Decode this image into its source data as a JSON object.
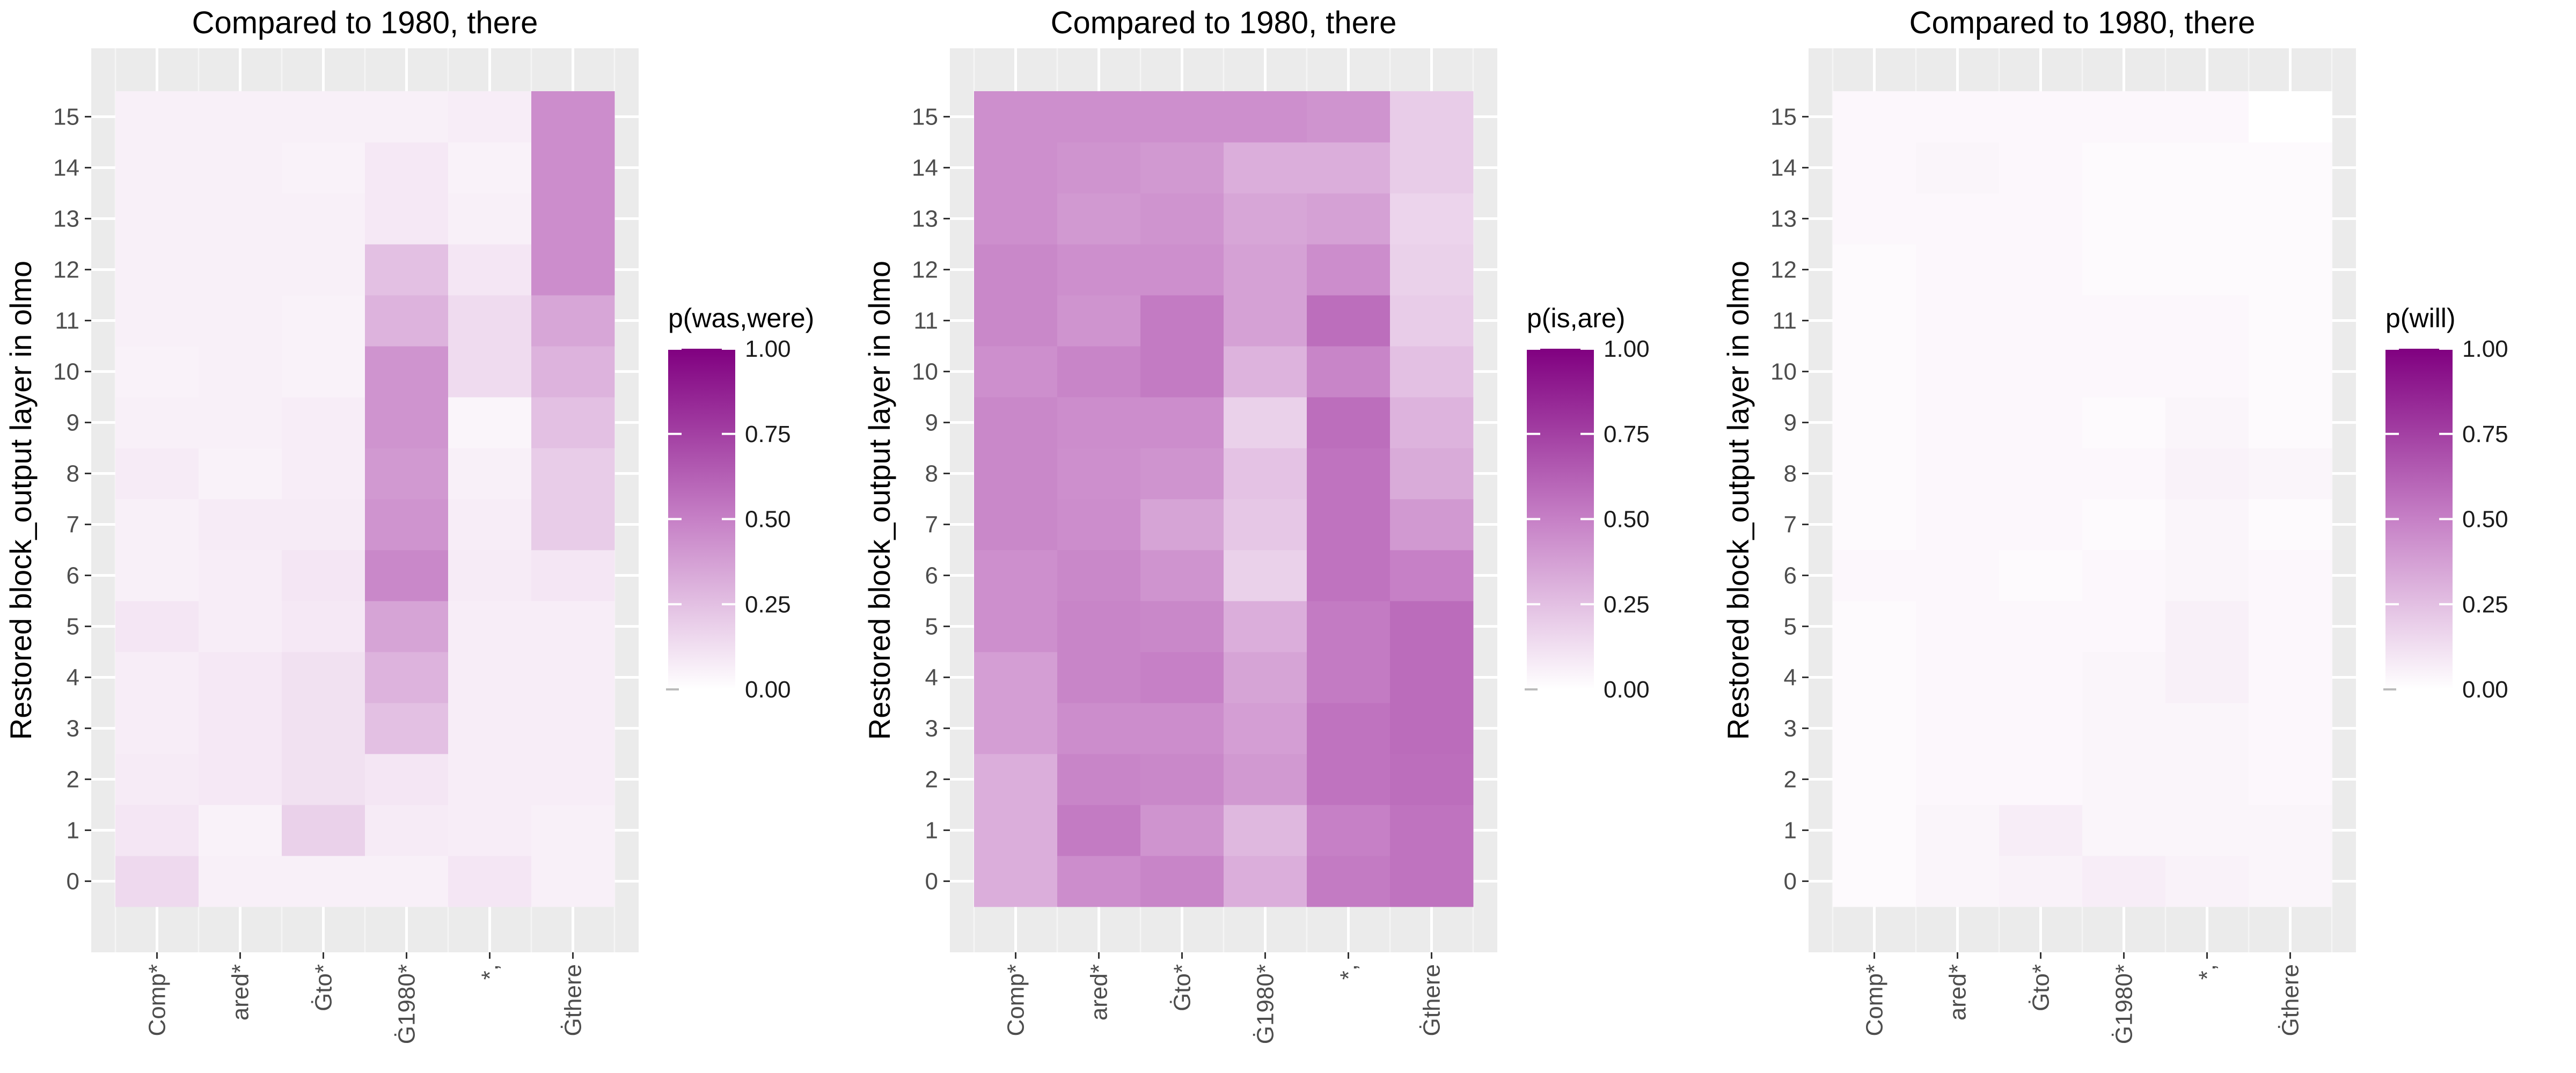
{
  "chart_data": [
    {
      "type": "heatmap",
      "title": "Compared to 1980, there",
      "ylabel": "Restored block_output layer in olmo",
      "xlabel": "",
      "x_categories": [
        "Comp*",
        "ared*",
        "Ġto*",
        "Ġ1980*",
        "*,",
        "Ġthere"
      ],
      "y_categories": [
        "0",
        "1",
        "2",
        "3",
        "4",
        "5",
        "6",
        "7",
        "8",
        "9",
        "10",
        "11",
        "12",
        "13",
        "14",
        "15"
      ],
      "value_range": [
        0,
        1
      ],
      "legend": {
        "title": "p(was,were)",
        "ticks": [
          "1.00",
          "0.75",
          "0.50",
          "0.25",
          "0.00"
        ],
        "tick_values": [
          1,
          0.75,
          0.5,
          0.25,
          0
        ],
        "placement": "right"
      },
      "colors": {
        "low": "#ffffff",
        "high": "#800080"
      },
      "grid": true,
      "values_by_layer": [
        [
          0.15,
          0.06,
          0.06,
          0.06,
          0.1,
          0.06
        ],
        [
          0.1,
          0.05,
          0.18,
          0.08,
          0.07,
          0.06
        ],
        [
          0.08,
          0.09,
          0.12,
          0.1,
          0.07,
          0.07
        ],
        [
          0.07,
          0.09,
          0.12,
          0.25,
          0.07,
          0.07
        ],
        [
          0.07,
          0.09,
          0.12,
          0.3,
          0.07,
          0.07
        ],
        [
          0.1,
          0.07,
          0.09,
          0.36,
          0.07,
          0.07
        ],
        [
          0.06,
          0.07,
          0.1,
          0.47,
          0.08,
          0.1
        ],
        [
          0.06,
          0.08,
          0.08,
          0.42,
          0.07,
          0.2
        ],
        [
          0.08,
          0.05,
          0.07,
          0.4,
          0.06,
          0.2
        ],
        [
          0.06,
          0.06,
          0.07,
          0.42,
          0.04,
          0.25
        ],
        [
          0.05,
          0.06,
          0.05,
          0.42,
          0.14,
          0.3
        ],
        [
          0.06,
          0.06,
          0.05,
          0.3,
          0.14,
          0.35
        ],
        [
          0.06,
          0.06,
          0.06,
          0.25,
          0.1,
          0.45
        ],
        [
          0.06,
          0.06,
          0.06,
          0.09,
          0.06,
          0.45
        ],
        [
          0.06,
          0.06,
          0.05,
          0.09,
          0.05,
          0.45
        ],
        [
          0.06,
          0.06,
          0.06,
          0.06,
          0.07,
          0.45
        ]
      ]
    },
    {
      "type": "heatmap",
      "title": "Compared to 1980, there",
      "ylabel": "Restored block_output layer in olmo",
      "xlabel": "",
      "x_categories": [
        "Comp*",
        "ared*",
        "Ġto*",
        "Ġ1980*",
        "*,",
        "Ġthere"
      ],
      "y_categories": [
        "0",
        "1",
        "2",
        "3",
        "4",
        "5",
        "6",
        "7",
        "8",
        "9",
        "10",
        "11",
        "12",
        "13",
        "14",
        "15"
      ],
      "value_range": [
        0,
        1
      ],
      "legend": {
        "title": "p(is,are)",
        "ticks": [
          "1.00",
          "0.75",
          "0.50",
          "0.25",
          "0.00"
        ],
        "tick_values": [
          1,
          0.75,
          0.5,
          0.25,
          0
        ],
        "placement": "right"
      },
      "colors": {
        "low": "#ffffff",
        "high": "#800080"
      },
      "grid": true,
      "values_by_layer": [
        [
          0.32,
          0.45,
          0.48,
          0.32,
          0.52,
          0.55
        ],
        [
          0.32,
          0.52,
          0.42,
          0.28,
          0.5,
          0.55
        ],
        [
          0.32,
          0.48,
          0.47,
          0.4,
          0.55,
          0.57
        ],
        [
          0.38,
          0.45,
          0.45,
          0.38,
          0.55,
          0.58
        ],
        [
          0.38,
          0.48,
          0.5,
          0.36,
          0.52,
          0.58
        ],
        [
          0.44,
          0.48,
          0.47,
          0.32,
          0.52,
          0.58
        ],
        [
          0.44,
          0.47,
          0.42,
          0.18,
          0.55,
          0.5
        ],
        [
          0.47,
          0.45,
          0.36,
          0.22,
          0.55,
          0.4
        ],
        [
          0.47,
          0.44,
          0.42,
          0.24,
          0.55,
          0.33
        ],
        [
          0.47,
          0.45,
          0.45,
          0.18,
          0.57,
          0.3
        ],
        [
          0.44,
          0.48,
          0.52,
          0.3,
          0.48,
          0.25
        ],
        [
          0.47,
          0.42,
          0.52,
          0.37,
          0.57,
          0.2
        ],
        [
          0.47,
          0.44,
          0.44,
          0.37,
          0.45,
          0.18
        ],
        [
          0.44,
          0.4,
          0.42,
          0.35,
          0.37,
          0.17
        ],
        [
          0.44,
          0.42,
          0.4,
          0.32,
          0.32,
          0.2
        ],
        [
          0.44,
          0.44,
          0.44,
          0.44,
          0.42,
          0.2
        ]
      ]
    },
    {
      "type": "heatmap",
      "title": "Compared to 1980, there",
      "ylabel": "Restored block_output layer in olmo",
      "xlabel": "",
      "x_categories": [
        "Comp*",
        "ared*",
        "Ġto*",
        "Ġ1980*",
        "*,",
        "Ġthere"
      ],
      "y_categories": [
        "0",
        "1",
        "2",
        "3",
        "4",
        "5",
        "6",
        "7",
        "8",
        "9",
        "10",
        "11",
        "12",
        "13",
        "14",
        "15"
      ],
      "value_range": [
        0,
        1
      ],
      "legend": {
        "title": "p(will)",
        "ticks": [
          "1.00",
          "0.75",
          "0.50",
          "0.25",
          "0.00"
        ],
        "tick_values": [
          1,
          0.75,
          0.5,
          0.25,
          0
        ],
        "placement": "right"
      },
      "colors": {
        "low": "#ffffff",
        "high": "#800080"
      },
      "grid": true,
      "values_by_layer": [
        [
          0.02,
          0.04,
          0.05,
          0.07,
          0.05,
          0.04
        ],
        [
          0.02,
          0.04,
          0.07,
          0.04,
          0.04,
          0.04
        ],
        [
          0.02,
          0.03,
          0.03,
          0.04,
          0.04,
          0.03
        ],
        [
          0.02,
          0.03,
          0.03,
          0.04,
          0.04,
          0.03
        ],
        [
          0.02,
          0.03,
          0.03,
          0.04,
          0.06,
          0.03
        ],
        [
          0.02,
          0.03,
          0.03,
          0.03,
          0.06,
          0.03
        ],
        [
          0.03,
          0.03,
          0.02,
          0.03,
          0.04,
          0.03
        ],
        [
          0.02,
          0.03,
          0.03,
          0.02,
          0.04,
          0.02
        ],
        [
          0.02,
          0.03,
          0.03,
          0.03,
          0.05,
          0.04
        ],
        [
          0.02,
          0.03,
          0.03,
          0.02,
          0.04,
          0.02
        ],
        [
          0.02,
          0.03,
          0.03,
          0.03,
          0.03,
          0.02
        ],
        [
          0.02,
          0.03,
          0.03,
          0.03,
          0.03,
          0.02
        ],
        [
          0.02,
          0.03,
          0.03,
          0.02,
          0.02,
          0.02
        ],
        [
          0.03,
          0.03,
          0.03,
          0.02,
          0.02,
          0.02
        ],
        [
          0.03,
          0.04,
          0.03,
          0.02,
          0.02,
          0.02
        ],
        [
          0.03,
          0.03,
          0.03,
          0.03,
          0.03,
          0.0
        ]
      ]
    }
  ]
}
